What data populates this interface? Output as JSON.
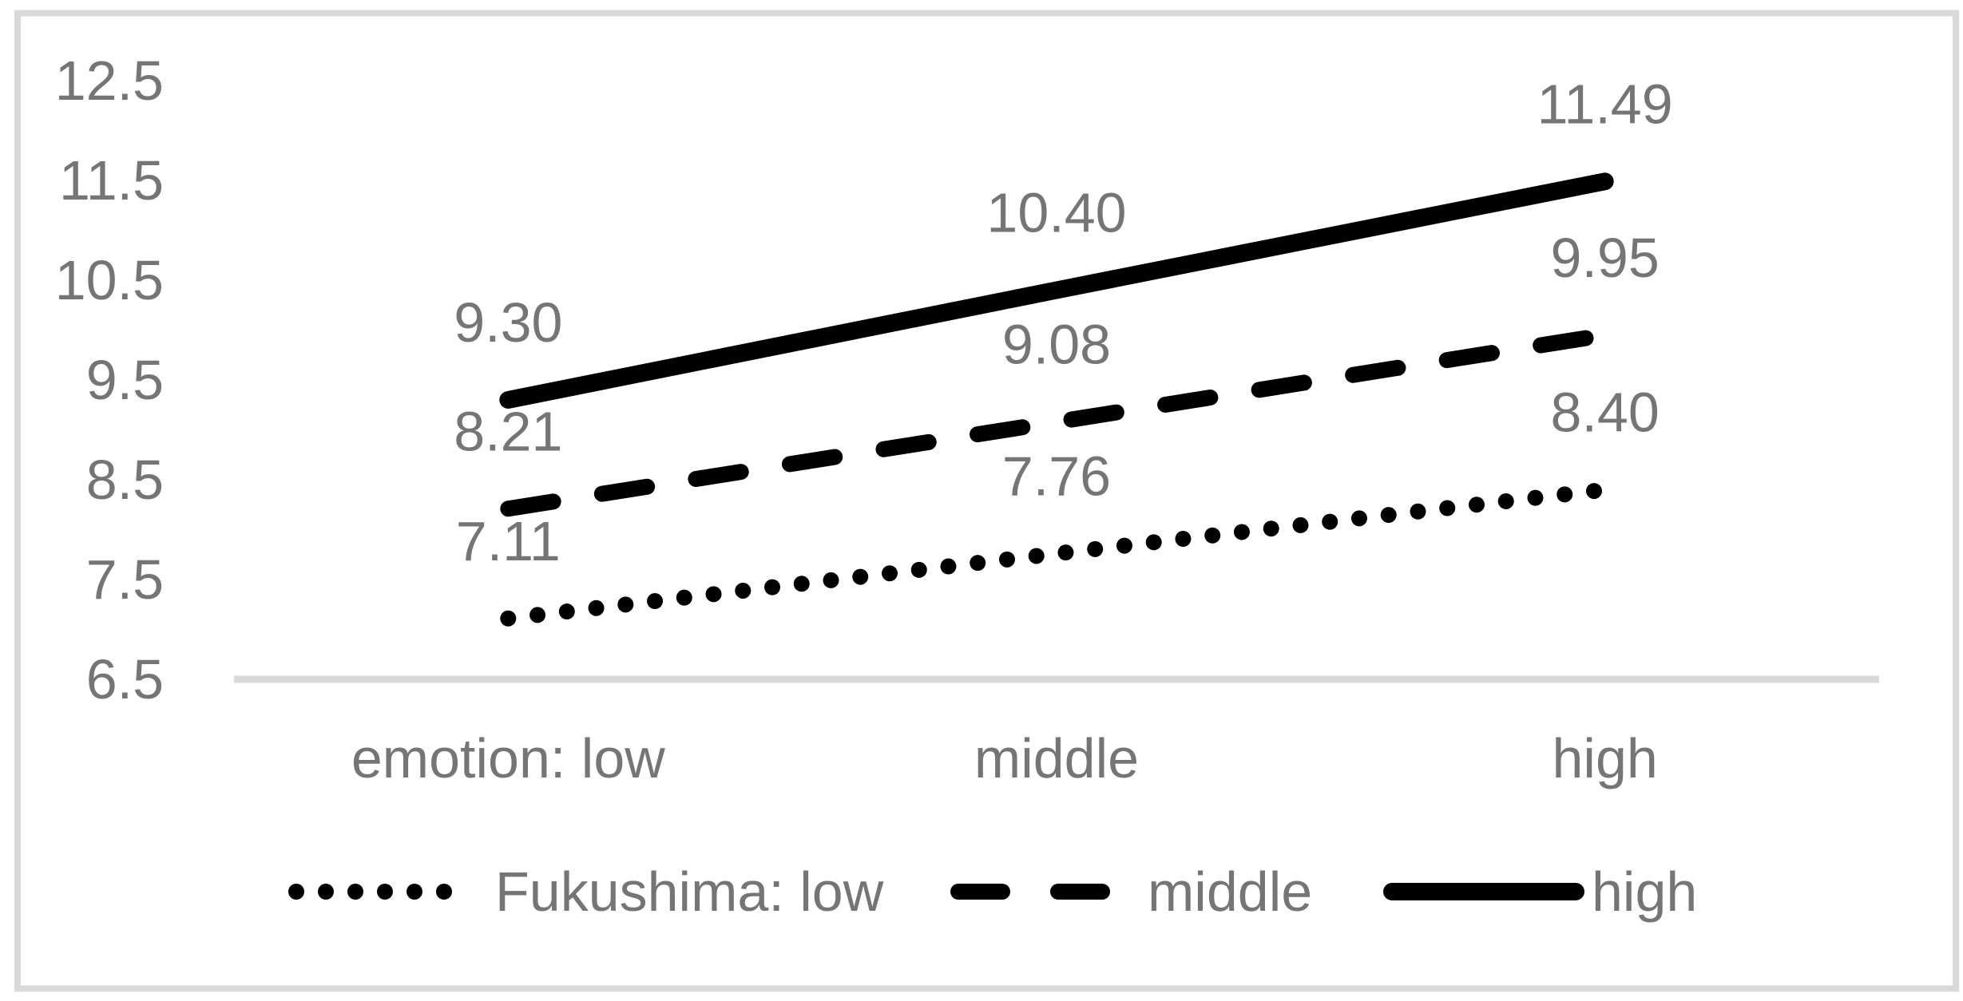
{
  "chart_data": {
    "type": "line",
    "title": "",
    "xlabel": "",
    "ylabel": "",
    "categories": [
      "emotion: low",
      "middle",
      "high"
    ],
    "series": [
      {
        "name": "Fukushima: low",
        "slug": "fukushima-low",
        "line_style": "dotted",
        "values": [
          7.11,
          7.76,
          8.4
        ],
        "point_labels": [
          "7.11",
          "7.76",
          "8.40"
        ]
      },
      {
        "name": "middle",
        "slug": "fukushima-middle",
        "line_style": "dashed",
        "values": [
          8.21,
          9.08,
          9.95
        ],
        "point_labels": [
          "8.21",
          "9.08",
          "9.95"
        ]
      },
      {
        "name": "high",
        "slug": "fukushima-high",
        "line_style": "solid",
        "values": [
          9.3,
          10.4,
          11.49
        ],
        "point_labels": [
          "9.30",
          "10.40",
          "11.49"
        ]
      }
    ],
    "y_axis": {
      "min": 6.5,
      "max": 12.5,
      "step": 1.0,
      "tick_labels": [
        "12.5",
        "11.5",
        "10.5",
        "9.5",
        "8.5",
        "7.5",
        "6.5"
      ]
    },
    "x_axis": {
      "tick_labels": [
        "emotion: low",
        "middle",
        "high"
      ]
    },
    "grid": "off",
    "legend_position": "bottom",
    "legend": [
      {
        "label": "Fukushima: low",
        "marker": "dotted"
      },
      {
        "label": "middle",
        "marker": "dashed"
      },
      {
        "label": "high",
        "marker": "solid"
      }
    ],
    "colors": {
      "series_line": "#000000",
      "text": "#757575",
      "axis_line": "#d9d9d9",
      "frame_border": "#d9d9d9",
      "background": "#ffffff"
    }
  }
}
